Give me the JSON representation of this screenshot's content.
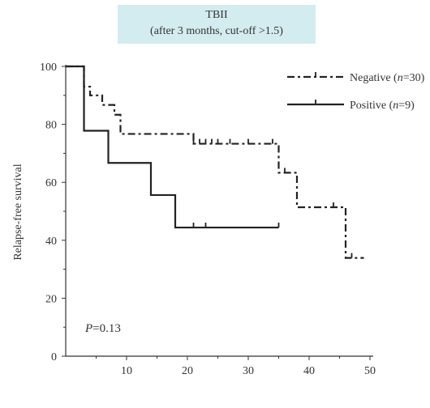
{
  "chart_data": {
    "type": "line",
    "title": "TBII",
    "subtitle": "(after 3 months, cut-off >1.5)",
    "xlabel": "",
    "ylabel": "Relapse-free survival",
    "xlim": [
      0,
      50
    ],
    "ylim": [
      0,
      100
    ],
    "xticks": [
      10,
      20,
      30,
      40,
      50
    ],
    "yticks": [
      0,
      20,
      40,
      60,
      80,
      100
    ],
    "grid": false,
    "legend_position": "top-right",
    "annotation": {
      "italic": "P",
      "rest": "=0.13"
    },
    "series": [
      {
        "name_prefix": "Negative (",
        "name_italic": "n",
        "name_suffix": "=30)",
        "style": "dashdot",
        "color": "#222222",
        "steps": [
          [
            0,
            100
          ],
          [
            3,
            93
          ],
          [
            4,
            90
          ],
          [
            6,
            86.7
          ],
          [
            8,
            83.3
          ],
          [
            9,
            76.7
          ],
          [
            21,
            73.3
          ],
          [
            35,
            63.3
          ],
          [
            38,
            51.4
          ],
          [
            46,
            33.9
          ],
          [
            49,
            33.9
          ]
        ],
        "censored": [
          [
            21,
            73.3
          ],
          [
            22,
            73.3
          ],
          [
            23,
            73.3
          ],
          [
            24,
            73.3
          ],
          [
            25,
            73.3
          ],
          [
            27,
            73.3
          ],
          [
            30,
            73.3
          ],
          [
            34,
            73.3
          ],
          [
            36,
            63.3
          ],
          [
            44,
            51.4
          ],
          [
            47,
            33.9
          ]
        ]
      },
      {
        "name_prefix": "Positive (",
        "name_italic": "n",
        "name_suffix": "=9)",
        "style": "solid",
        "color": "#222222",
        "steps": [
          [
            0,
            100
          ],
          [
            3,
            77.8
          ],
          [
            7,
            66.7
          ],
          [
            14,
            55.6
          ],
          [
            18,
            44.4
          ],
          [
            35,
            44.4
          ]
        ],
        "censored": [
          [
            21,
            44.4
          ],
          [
            23,
            44.4
          ],
          [
            35,
            44.4
          ]
        ]
      }
    ]
  }
}
